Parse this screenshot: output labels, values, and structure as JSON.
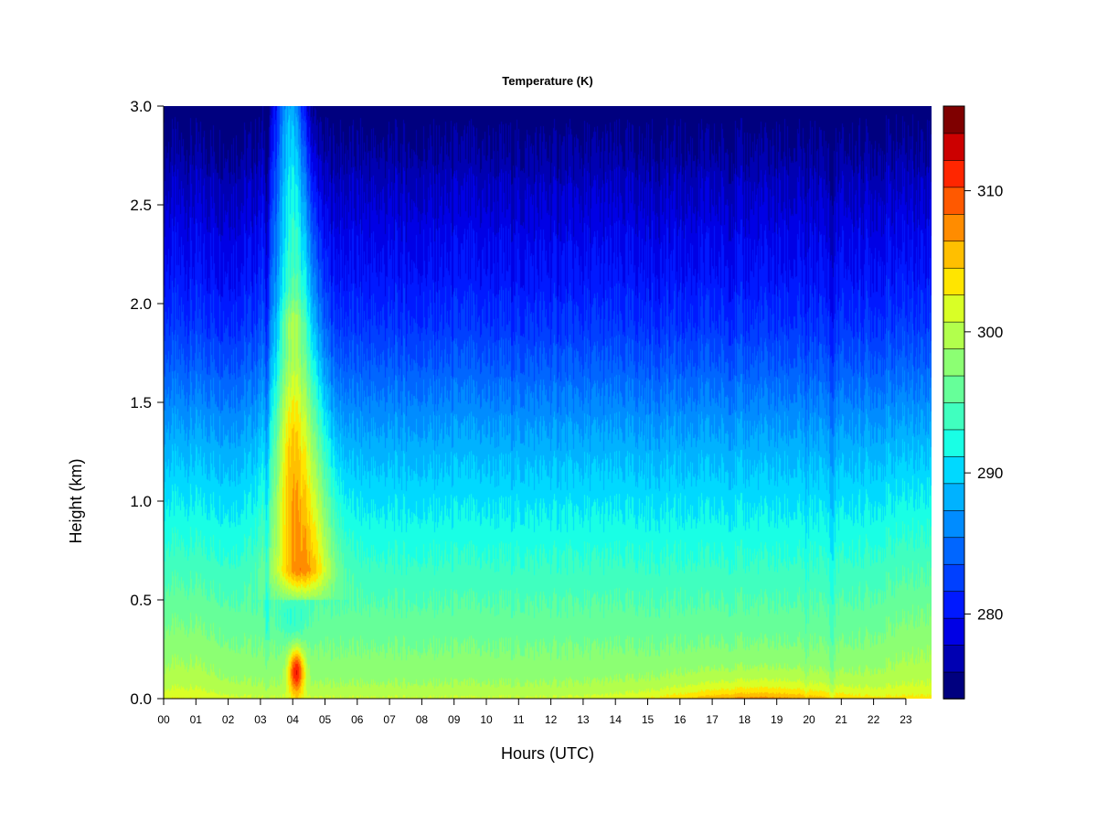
{
  "chart_data": {
    "type": "heatmap",
    "title": "Temperature (K)",
    "xlabel": "Hours (UTC)",
    "ylabel": "Height (km)",
    "xlim": [
      0,
      24
    ],
    "ylim": [
      0,
      3.0
    ],
    "x_tick_labels": [
      "00",
      "01",
      "02",
      "03",
      "04",
      "05",
      "06",
      "07",
      "08",
      "09",
      "10",
      "11",
      "12",
      "13",
      "14",
      "15",
      "16",
      "17",
      "18",
      "19",
      "20",
      "21",
      "22",
      "23"
    ],
    "y_tick_labels": [
      "0.0",
      "0.5",
      "1.0",
      "1.5",
      "2.0",
      "2.5",
      "3.0"
    ],
    "colorbar": {
      "range": [
        274,
        316
      ],
      "tick_values": [
        280,
        290,
        300,
        310
      ],
      "tick_labels": [
        "280",
        "290",
        "300",
        "310"
      ],
      "levels": 21,
      "colors": [
        "#00007f",
        "#0000b2",
        "#0000e5",
        "#0019ff",
        "#0040ff",
        "#0066ff",
        "#008cff",
        "#00b2ff",
        "#00d9ff",
        "#19ffe5",
        "#40ffbf",
        "#66ff99",
        "#8cff73",
        "#b2ff4c",
        "#d9ff26",
        "#ffe500",
        "#ffbf00",
        "#ff8c00",
        "#ff5900",
        "#ff2600",
        "#cc0000",
        "#7f0000"
      ]
    },
    "features": [
      {
        "description": "warm plume",
        "x": [
          3.5,
          4.8
        ],
        "y": [
          0.5,
          3.0
        ],
        "max_value": 312
      },
      {
        "description": "near-surface warm core",
        "x": [
          3.7,
          4.4
        ],
        "y": [
          0.0,
          0.3
        ],
        "max_value": 312
      },
      {
        "description": "afternoon surface heating",
        "x": [
          14.5,
          20.8
        ],
        "y": [
          0.0,
          0.25
        ],
        "max_value": 305
      }
    ]
  }
}
